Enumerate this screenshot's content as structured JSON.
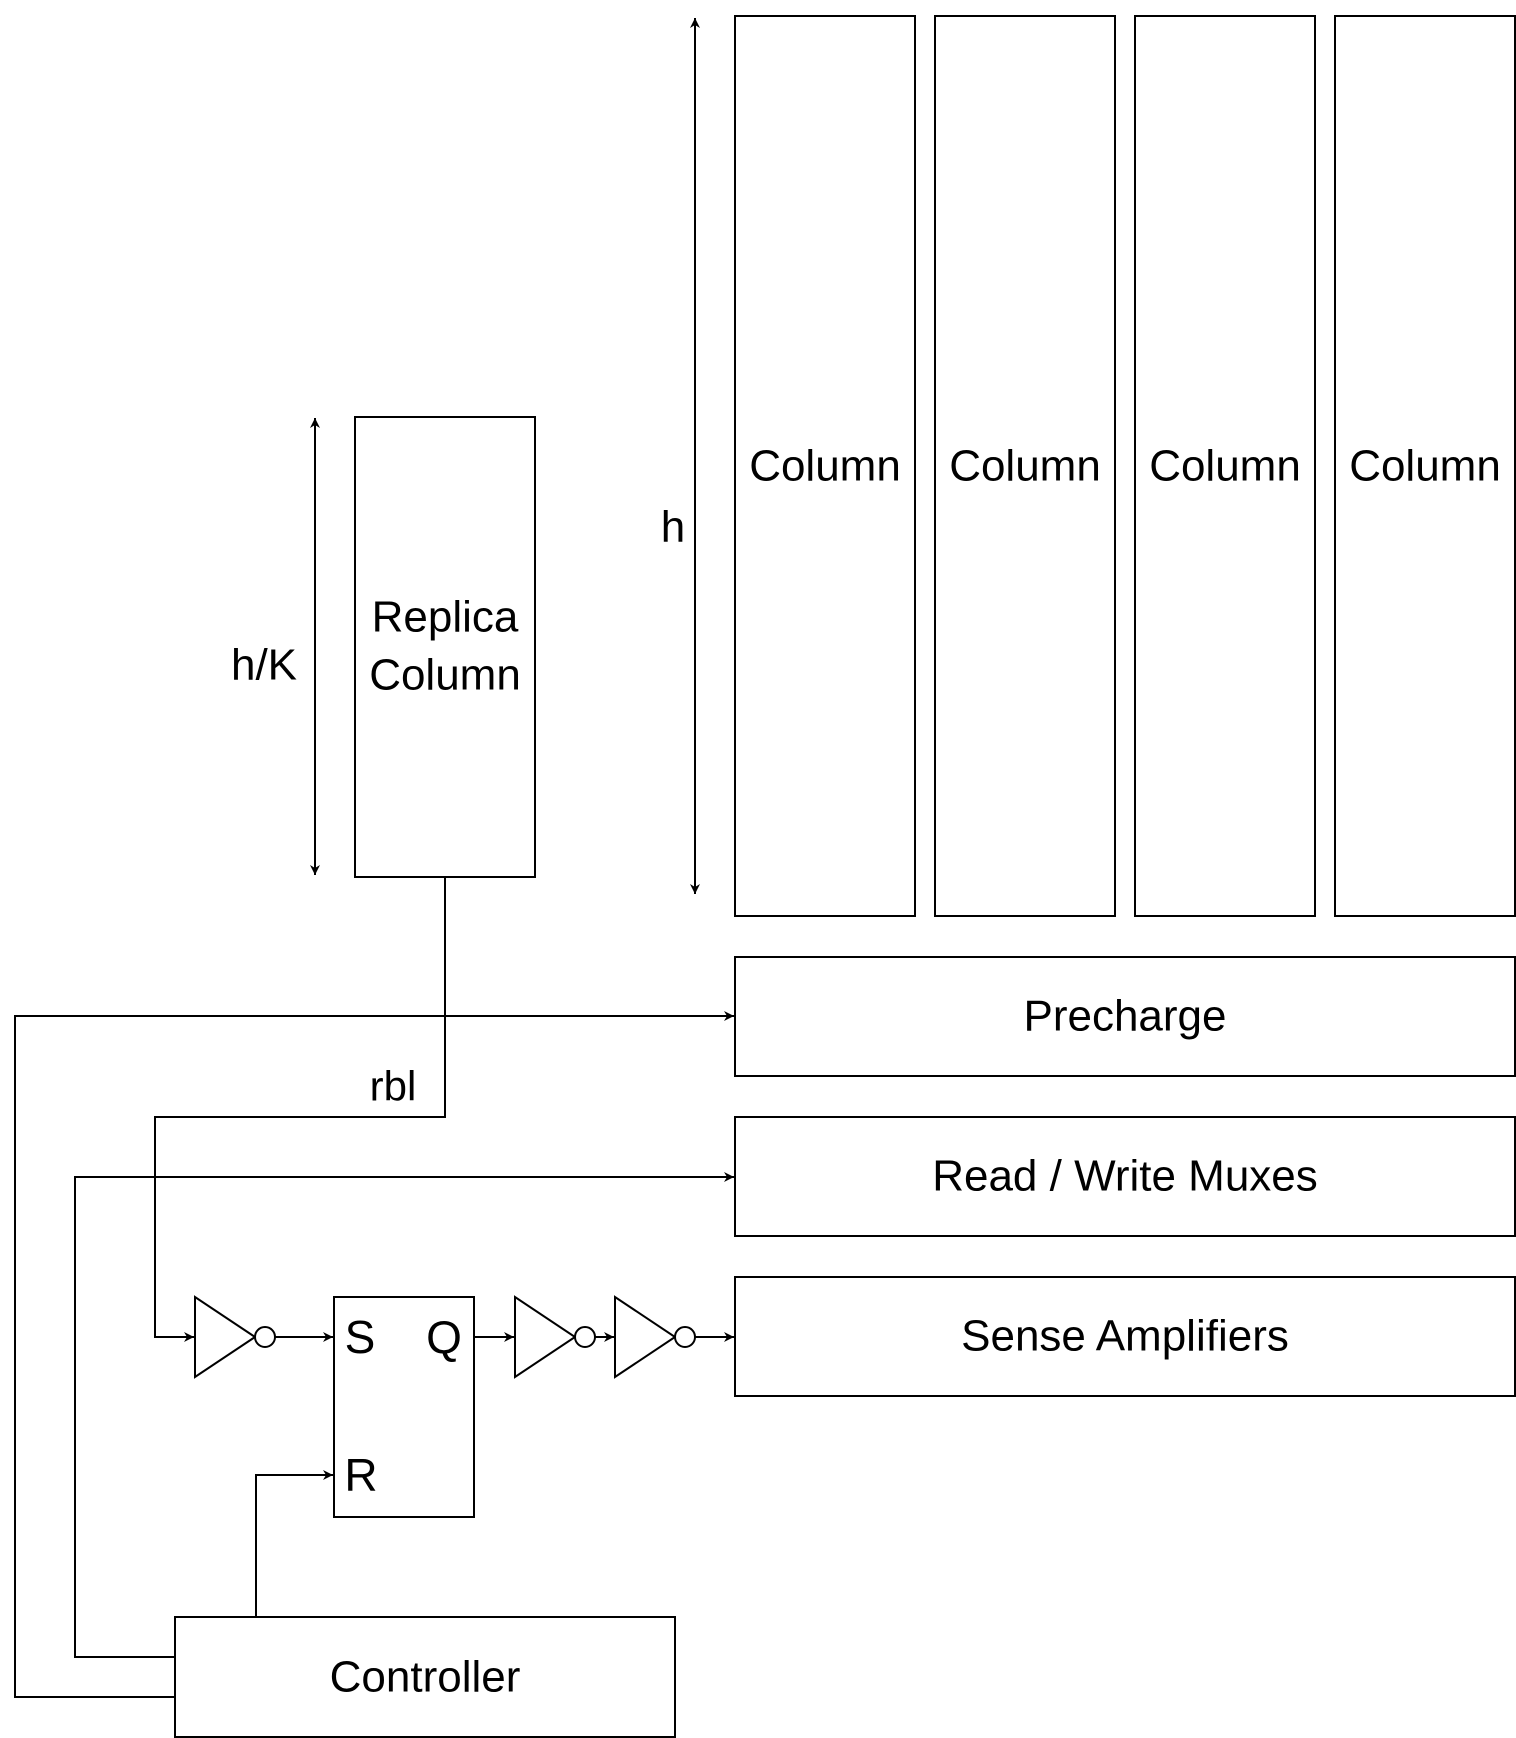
{
  "columns": {
    "label": "Column"
  },
  "replica": {
    "line1": "Replica",
    "line2": "Column"
  },
  "dimensions": {
    "h": "h",
    "h_over_k": "h/K"
  },
  "signals": {
    "rbl": "rbl"
  },
  "blocks": {
    "precharge": "Precharge",
    "muxes": "Read / Write Muxes",
    "sense_amps": "Sense Amplifiers",
    "controller": "Controller"
  },
  "latch": {
    "s": "S",
    "q": "Q",
    "r": "R"
  }
}
